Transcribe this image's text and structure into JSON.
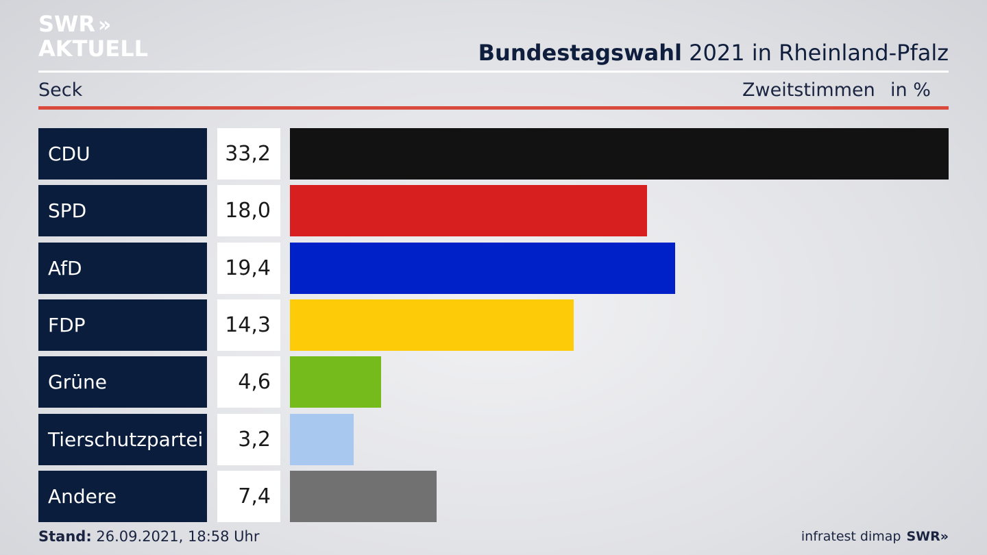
{
  "header": {
    "logo_line1": "SWR",
    "logo_chevrons": "»",
    "logo_line2": "AKTUELL",
    "title_bold": "Bundestagswahl",
    "title_rest": " 2021 in Rheinland-Pfalz",
    "region": "Seck",
    "measure": "Zweitstimmen",
    "unit": "in %"
  },
  "chart_data": {
    "type": "bar",
    "orientation": "horizontal",
    "categories": [
      "CDU",
      "SPD",
      "AfD",
      "FDP",
      "Grüne",
      "Tierschutzpartei",
      "Andere"
    ],
    "values": [
      33.2,
      18.0,
      19.4,
      14.3,
      4.6,
      3.2,
      7.4
    ],
    "value_labels": [
      "33,2",
      "18,0",
      "19,4",
      "14,3",
      "4,6",
      "3,2",
      "7,4"
    ],
    "colors": [
      "#121212",
      "#d81f1f",
      "#0021c8",
      "#fdcb08",
      "#76bb1c",
      "#a8c8f0",
      "#717171"
    ],
    "xlim": [
      0,
      33.2
    ],
    "grid": false,
    "legend": "none"
  },
  "footer": {
    "stand_label": "Stand:",
    "stand_value": " 26.09.2021, 18:58 Uhr",
    "source": "infratest dimap",
    "brand": "SWR»"
  }
}
